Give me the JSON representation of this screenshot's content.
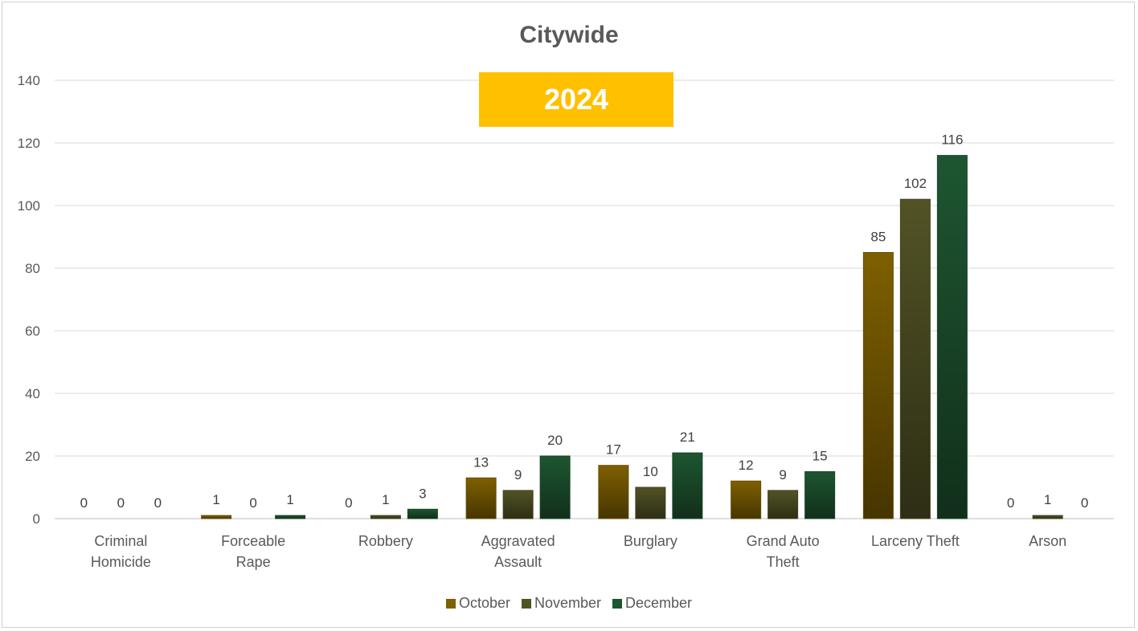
{
  "chart_data": {
    "type": "bar",
    "title": "Citywide",
    "badge": "2024",
    "categories": [
      [
        "Criminal",
        "Homicide"
      ],
      [
        "Forceable",
        "Rape"
      ],
      [
        "Robbery"
      ],
      [
        "Aggravated",
        "Assault"
      ],
      [
        "Burglary"
      ],
      [
        "Grand Auto",
        "Theft"
      ],
      [
        "Larceny Theft"
      ],
      [
        "Arson"
      ]
    ],
    "series": [
      {
        "name": "October",
        "color": "#7F6000",
        "values": [
          0,
          1,
          0,
          13,
          17,
          12,
          85,
          0
        ]
      },
      {
        "name": "November",
        "color": "#525325",
        "values": [
          0,
          0,
          1,
          9,
          10,
          9,
          102,
          1
        ]
      },
      {
        "name": "December",
        "color": "#1E5631",
        "values": [
          0,
          1,
          3,
          20,
          21,
          15,
          116,
          0
        ]
      }
    ],
    "ylim": [
      0,
      140
    ],
    "yticks": [
      0,
      20,
      40,
      60,
      80,
      100,
      120,
      140
    ],
    "grid": true,
    "legend": "bottom",
    "data_labels": true
  }
}
